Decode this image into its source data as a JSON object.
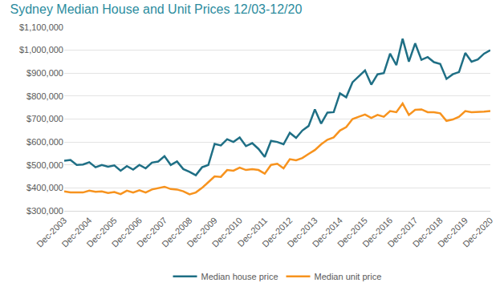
{
  "chart_data": {
    "type": "line",
    "title": "Sydney Median House and Unit Prices 12/03-12/20",
    "categories": [
      "Dec-2003",
      null,
      null,
      null,
      "Dec-2004",
      null,
      null,
      null,
      "Dec-2005",
      null,
      null,
      null,
      "Dec-2006",
      null,
      null,
      null,
      "Dec-2007",
      null,
      null,
      null,
      "Dec-2008",
      null,
      null,
      null,
      "Dec-2009",
      null,
      null,
      null,
      "Dec-2010",
      null,
      null,
      null,
      "Dec-2011",
      null,
      null,
      null,
      "Dec-2012",
      null,
      null,
      null,
      "Dec-2013",
      null,
      null,
      null,
      "Dec-2014",
      null,
      null,
      null,
      "Dec-2015",
      null,
      null,
      null,
      "Dec-2016",
      null,
      null,
      null,
      "Dec-2017",
      null,
      null,
      null,
      "Dec-2018",
      null,
      null,
      null,
      "Dec-2019",
      null,
      null,
      null,
      "Dec-2020"
    ],
    "series": [
      {
        "name": "Median house price",
        "color": "#1f6f85",
        "values": [
          518000,
          522000,
          500000,
          502000,
          512000,
          490000,
          500000,
          492000,
          498000,
          475000,
          495000,
          480000,
          500000,
          485000,
          510000,
          515000,
          538000,
          500000,
          515000,
          482000,
          470000,
          455000,
          490000,
          500000,
          592000,
          585000,
          612000,
          600000,
          620000,
          582000,
          595000,
          570000,
          535000,
          605000,
          600000,
          590000,
          640000,
          618000,
          650000,
          670000,
          742000,
          680000,
          728000,
          730000,
          812000,
          795000,
          860000,
          885000,
          912000,
          850000,
          895000,
          900000,
          985000,
          935000,
          1050000,
          950000,
          1030000,
          958000,
          970000,
          948000,
          940000,
          875000,
          895000,
          905000,
          988000,
          950000,
          960000,
          985000,
          1000000
        ]
      },
      {
        "name": "Median unit price",
        "color": "#f7931e",
        "values": [
          385000,
          380000,
          380000,
          380000,
          388000,
          383000,
          385000,
          378000,
          382000,
          373000,
          388000,
          380000,
          390000,
          380000,
          393000,
          398000,
          405000,
          395000,
          393000,
          385000,
          372000,
          380000,
          400000,
          425000,
          450000,
          448000,
          478000,
          475000,
          488000,
          478000,
          482000,
          478000,
          462000,
          500000,
          505000,
          485000,
          525000,
          520000,
          530000,
          548000,
          565000,
          590000,
          610000,
          620000,
          650000,
          665000,
          700000,
          710000,
          720000,
          705000,
          718000,
          710000,
          735000,
          730000,
          768000,
          718000,
          740000,
          742000,
          730000,
          730000,
          725000,
          692000,
          698000,
          710000,
          735000,
          730000,
          730000,
          732000,
          735000
        ]
      }
    ],
    "ylim": [
      300000,
      1100000
    ],
    "yticks": [
      {
        "value": 300000,
        "label": "$300,000"
      },
      {
        "value": 400000,
        "label": "$400,000"
      },
      {
        "value": 500000,
        "label": "$500,000"
      },
      {
        "value": 600000,
        "label": "$600,000"
      },
      {
        "value": 700000,
        "label": "$700,000"
      },
      {
        "value": 800000,
        "label": "$800,000"
      },
      {
        "value": 900000,
        "label": "$900,000"
      },
      {
        "value": 1000000,
        "label": "$1,000,000"
      },
      {
        "value": 1100000,
        "label": "$1,100,000"
      }
    ],
    "grid": true,
    "legend": "bottom"
  }
}
